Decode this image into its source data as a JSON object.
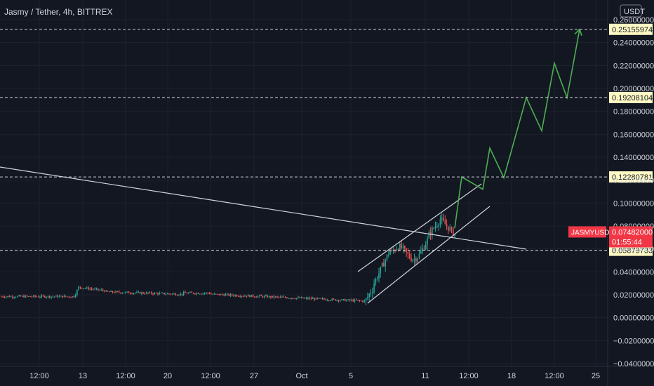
{
  "header": {
    "title": "Jasmy / Tether, 4h, BITTREX"
  },
  "currency": "USDT",
  "chart_data": {
    "type": "candlestick",
    "symbol": "JASMYUSDT",
    "title": "Jasmy / Tether, 4h, BITTREX",
    "y_ticks": [
      "0.26000000",
      "0.24000000",
      "0.22000000",
      "0.20000000",
      "0.18000000",
      "0.16000000",
      "0.14000000",
      "0.12000000",
      "0.10000000",
      "0.08000000",
      "0.06000000",
      "0.04000000",
      "0.02000000",
      "0.00000000",
      "−0.02000000",
      "−0.04000000"
    ],
    "y_tick_values": [
      0.26,
      0.24,
      0.22,
      0.2,
      0.18,
      0.16,
      0.14,
      0.12,
      0.1,
      0.08,
      0.06,
      0.04,
      0.02,
      0.0,
      -0.02,
      -0.04
    ],
    "ylim": [
      -0.04,
      0.26
    ],
    "x_ticks": [
      "12:00",
      "13",
      "12:00",
      "20",
      "12:00",
      "27",
      "Oct",
      "5",
      "11",
      "12:00",
      "18",
      "12:00",
      "25"
    ],
    "x_tick_positions": [
      56,
      118,
      179,
      239,
      300,
      362,
      430,
      500,
      606,
      668,
      729,
      790,
      849
    ],
    "horizontal_levels": [
      {
        "label": "0.25155974",
        "value": 0.25155974
      },
      {
        "label": "0.19208104",
        "value": 0.19208104
      },
      {
        "label": "0.12280781",
        "value": 0.12280781
      },
      {
        "label": "0.05879733",
        "value": 0.05879733
      }
    ],
    "last_price": {
      "label": "0.07482000",
      "value": 0.07482,
      "countdown": "01:55:44",
      "symbol_tag": "JASMYUSDT"
    },
    "projection_path": [
      [
        0.0745,
        0.078
      ],
      [
        0.0745,
        0.1228
      ],
      [
        0.0745,
        0.112
      ],
      [
        0.0745,
        0.148
      ],
      [
        0.0745,
        0.122
      ],
      [
        0.0745,
        0.192
      ],
      [
        0.0745,
        0.163
      ],
      [
        0.0745,
        0.222
      ],
      [
        0.0745,
        0.192
      ],
      [
        0.0745,
        0.2516
      ]
    ],
    "colors": {
      "up": "#26a69a",
      "down": "#ef5350",
      "projection": "#4caf50",
      "grid": "#1e222d",
      "text": "#d1d4dc",
      "label_bg": "#fff9c4",
      "price_bg": "#f23645"
    }
  }
}
